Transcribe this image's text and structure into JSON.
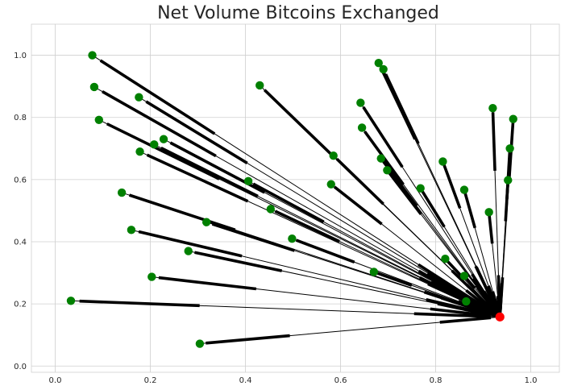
{
  "chart_data": {
    "type": "scatter",
    "title": "Net Volume Bitcoins Exchanged",
    "xlabel": "",
    "ylabel": "",
    "xlim": [
      -0.05,
      1.06
    ],
    "ylim": [
      -0.02,
      1.1
    ],
    "x_ticks": [
      0.0,
      0.2,
      0.4,
      0.6,
      0.8,
      1.0
    ],
    "y_ticks": [
      0.0,
      0.2,
      0.4,
      0.6,
      0.8,
      1.0
    ],
    "x_tick_labels": [
      "0.0",
      "0.2",
      "0.4",
      "0.6",
      "0.8",
      "1.0"
    ],
    "y_tick_labels": [
      "0.0",
      "0.2",
      "0.4",
      "0.6",
      "0.8",
      "1.0"
    ],
    "grid": true,
    "hub": {
      "x": 0.935,
      "y": 0.158,
      "color": "#ff0000"
    },
    "node_color": "#008000",
    "edge_color": "#000000",
    "nodes": [
      {
        "x": 0.078,
        "y": 1.0
      },
      {
        "x": 0.082,
        "y": 0.898
      },
      {
        "x": 0.092,
        "y": 0.792
      },
      {
        "x": 0.176,
        "y": 0.865
      },
      {
        "x": 0.178,
        "y": 0.69
      },
      {
        "x": 0.208,
        "y": 0.713
      },
      {
        "x": 0.228,
        "y": 0.73
      },
      {
        "x": 0.14,
        "y": 0.558
      },
      {
        "x": 0.16,
        "y": 0.438
      },
      {
        "x": 0.318,
        "y": 0.463
      },
      {
        "x": 0.28,
        "y": 0.37
      },
      {
        "x": 0.203,
        "y": 0.287
      },
      {
        "x": 0.033,
        "y": 0.21
      },
      {
        "x": 0.304,
        "y": 0.072
      },
      {
        "x": 0.43,
        "y": 0.903
      },
      {
        "x": 0.406,
        "y": 0.595
      },
      {
        "x": 0.453,
        "y": 0.505
      },
      {
        "x": 0.498,
        "y": 0.41
      },
      {
        "x": 0.58,
        "y": 0.585
      },
      {
        "x": 0.585,
        "y": 0.677
      },
      {
        "x": 0.642,
        "y": 0.847
      },
      {
        "x": 0.645,
        "y": 0.767
      },
      {
        "x": 0.68,
        "y": 0.975
      },
      {
        "x": 0.69,
        "y": 0.955
      },
      {
        "x": 0.685,
        "y": 0.668
      },
      {
        "x": 0.698,
        "y": 0.63
      },
      {
        "x": 0.67,
        "y": 0.303
      },
      {
        "x": 0.768,
        "y": 0.572
      },
      {
        "x": 0.815,
        "y": 0.658
      },
      {
        "x": 0.82,
        "y": 0.345
      },
      {
        "x": 0.86,
        "y": 0.567
      },
      {
        "x": 0.86,
        "y": 0.29
      },
      {
        "x": 0.864,
        "y": 0.208
      },
      {
        "x": 0.912,
        "y": 0.495
      },
      {
        "x": 0.92,
        "y": 0.83
      },
      {
        "x": 0.952,
        "y": 0.598
      },
      {
        "x": 0.956,
        "y": 0.7
      },
      {
        "x": 0.963,
        "y": 0.795
      }
    ]
  }
}
